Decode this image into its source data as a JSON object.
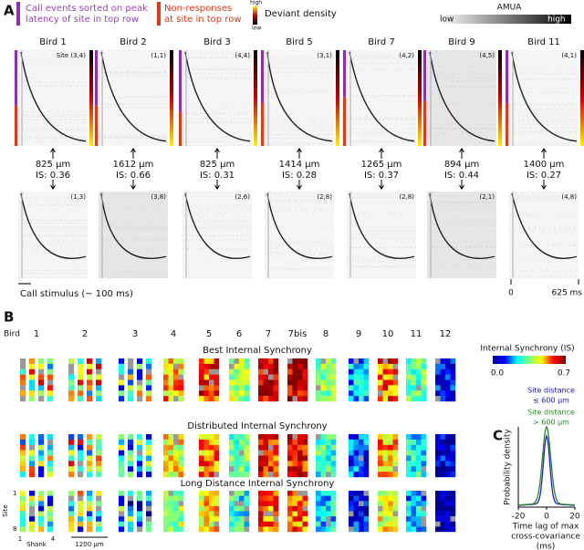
{
  "panel_a": {
    "label": "A",
    "call_events_legend": [
      "Call events sorted on peak",
      "latency of site in top row"
    ],
    "non_responses_legend": [
      "Non-responses",
      "at site in top row"
    ],
    "deviant_density": {
      "high": "high",
      "low": "low",
      "title": "Deviant density"
    },
    "amua": {
      "title": "AMUA",
      "low": "low",
      "high": "high"
    },
    "birds": [
      {
        "name": "Bird 1",
        "top_site": "Site (3,4)",
        "distance": "825 µm",
        "is": "IS: 0.36",
        "bottom_site": "(1,3)"
      },
      {
        "name": "Bird 2",
        "top_site": "(1,1)",
        "distance": "1612 µm",
        "is": "IS: 0.66",
        "bottom_site": "(3,8)"
      },
      {
        "name": "Bird 3",
        "top_site": "(4,4)",
        "distance": "825 µm",
        "is": "IS: 0.31",
        "bottom_site": "(2,6)"
      },
      {
        "name": "Bird 5",
        "top_site": "(3,1)",
        "distance": "1414 µm",
        "is": "IS: 0.28",
        "bottom_site": "(2,8)"
      },
      {
        "name": "Bird 7",
        "top_site": "(4,2)",
        "distance": "1265 µm",
        "is": "IS: 0.37",
        "bottom_site": "(2,8)"
      },
      {
        "name": "Bird 9",
        "top_site": "(4,5)",
        "distance": "894 µm",
        "is": "IS: 0.44",
        "bottom_site": "(2,1)"
      },
      {
        "name": "Bird 11",
        "top_site": "(4,1)",
        "distance": "1400 µm",
        "is": "IS: 0.27",
        "bottom_site": "(4,8)"
      }
    ],
    "stimulus_label": "Call stimulus (~ 100 ms)",
    "time_axis": {
      "start": "0",
      "end": "625 ms"
    }
  },
  "panel_b": {
    "label": "B",
    "bird_label": "Bird",
    "birds": [
      "1",
      "2",
      "3",
      "4",
      "5",
      "6",
      "7",
      "7bis",
      "8",
      "9",
      "10",
      "11",
      "12"
    ],
    "rows": [
      "Best Internal Synchrony",
      "Distributed Internal Synchrony",
      "Long Distance Internal Synchrony"
    ],
    "colorbar": {
      "title": "Internal Synchrony (IS)",
      "min": "0.0",
      "max": "0.7"
    },
    "site_label": "Site",
    "site_first": "1",
    "site_last": "8",
    "shank_label": "Shank",
    "shank_first": "1",
    "shank_last": "4",
    "scale": "1200 µm"
  },
  "panel_c": {
    "label": "C",
    "legend": [
      {
        "lines": [
          "Site distance",
          "≤ 600 µm"
        ],
        "color": "#2020c0"
      },
      {
        "lines": [
          "Site distance",
          "> 600 µm"
        ],
        "color": "#2a8a2a"
      }
    ],
    "y_label": "Probability density",
    "x_label": [
      "Time lag of max",
      "cross-covariance",
      "(ms)"
    ],
    "xlim": [
      -20,
      20
    ],
    "xticks": [
      -20,
      0,
      20
    ]
  }
}
